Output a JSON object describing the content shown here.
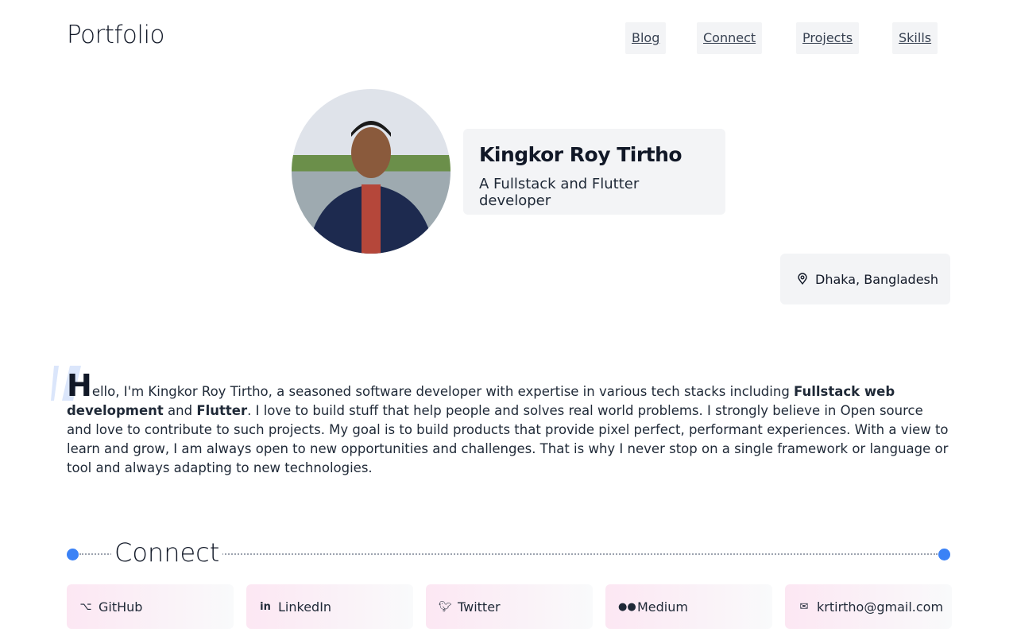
{
  "header": {
    "logo": "Portfolio",
    "nav": [
      "Blog",
      "Connect",
      "Projects",
      "Skills"
    ]
  },
  "profile": {
    "name": "Kingkor Roy Tirtho",
    "tagline": "A Fullstack and Flutter developer",
    "location": "Dhaka, Bangladesh"
  },
  "about": {
    "cap": "H",
    "part1": "ello, I'm Kingkor Roy Tirtho, a seasoned software developer with expertise in various tech stacks including ",
    "bold1": "Fullstack web development",
    "part2": " and ",
    "bold2": "Flutter",
    "part3": ". I love to build stuff that help people and solves real world problems. I strongly believe in Open source and love to contribute to such projects. My goal is to build products that provide pixel perfect, performant experiences. With a view to learn and grow, I am always open to new opportunities and challenges. That is why I never stop on a single framework or language or tool and always adapting to new technologies."
  },
  "connect": {
    "title": "Connect",
    "links": [
      {
        "label": "GitHub",
        "icon": "github-icon"
      },
      {
        "label": "LinkedIn",
        "icon": "linkedin-icon"
      },
      {
        "label": "Twitter",
        "icon": "twitter-icon"
      },
      {
        "label": "Medium",
        "icon": "medium-icon"
      },
      {
        "label": "krtirtho@gmail.com",
        "icon": "mail-icon"
      }
    ]
  },
  "colors": {
    "accent": "#3b82f6",
    "card": "#f3f4f6"
  }
}
